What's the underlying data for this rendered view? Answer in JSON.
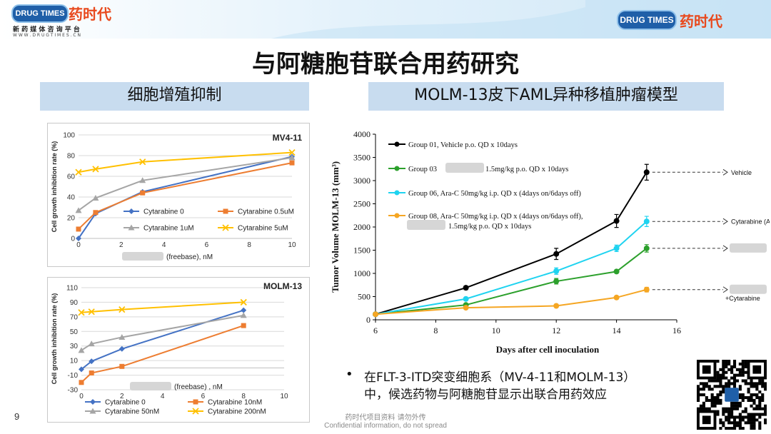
{
  "header": {
    "logo_left_badge": "DRUG TIMES",
    "logo_left_cn": "药时代",
    "logo_left_tagline": "新 药 媒 体 咨 询 平 台",
    "logo_left_url": "W W W . D R U G T I M E S . C N",
    "logo_right_badge": "DRUG TIMES",
    "logo_right_cn": "药时代"
  },
  "title": "与阿糖胞苷联合用药研究",
  "left_section_label": "细胞增殖抑制",
  "right_section_label": "MOLM-13皮下AML异种移植肿瘤模型",
  "bullet": {
    "symbol": "•",
    "line1": "在FLT-3-ITD突变细胞系（MV-4-11和MOLM-13）",
    "line2": "中，候选药物与阿糖胞苷显示出联合用药效应"
  },
  "footer": {
    "page_number": "9",
    "note_cn": "药时代项目资料 请勿外传",
    "note_en": "Confidential information, do not spread"
  },
  "colors": {
    "header_bg": "#dceefa",
    "label_bg": "#c8dcef",
    "blue": "#4472c4",
    "orange": "#ed7d31",
    "gray": "#a5a5a5",
    "yellow": "#ffc000",
    "black": "#000000",
    "green": "#2ca02c",
    "cyan": "#1fd3f0",
    "amber": "#f5a623"
  },
  "chart_data": [
    {
      "type": "line",
      "title": "MV4-11",
      "ylabel": "Cell growth inhibition rate (%)",
      "xlabel": "(freebase), nM",
      "xlim": [
        0,
        10
      ],
      "ylim": [
        0,
        100
      ],
      "xticks": [
        "0",
        "2",
        "4",
        "6",
        "8",
        "10"
      ],
      "yticks": [
        "0",
        "20",
        "40",
        "60",
        "80",
        "100"
      ],
      "legend_position": "lower-center",
      "series": [
        {
          "name": "Cytarabine 0",
          "color": "#4472c4",
          "marker": "diamond",
          "x": [
            0,
            0.8,
            3,
            10
          ],
          "y": [
            0,
            24,
            45,
            79
          ]
        },
        {
          "name": "Cytarabine 0.5uM",
          "color": "#ed7d31",
          "marker": "square",
          "x": [
            0,
            0.8,
            3,
            10
          ],
          "y": [
            9,
            25,
            44,
            73
          ]
        },
        {
          "name": "Cytarabine 1uM",
          "color": "#a5a5a5",
          "marker": "triangle",
          "x": [
            0,
            0.8,
            3,
            10
          ],
          "y": [
            27,
            39,
            56,
            78
          ]
        },
        {
          "name": "Cytarabine 5uM",
          "color": "#ffc000",
          "marker": "x",
          "x": [
            0,
            0.8,
            3,
            10
          ],
          "y": [
            64,
            67,
            74,
            83
          ]
        }
      ]
    },
    {
      "type": "line",
      "title": "MOLM-13",
      "ylabel": "Cell growth inhibition rate (%)",
      "xlabel": "(freebase) , nM",
      "xlim": [
        0,
        10
      ],
      "ylim": [
        -30,
        110
      ],
      "xticks": [
        "0",
        "2",
        "4",
        "6",
        "8",
        "10"
      ],
      "yticks": [
        "-30",
        "-10",
        "10",
        "30",
        "50",
        "70",
        "90",
        "110"
      ],
      "legend_position": "bottom",
      "series": [
        {
          "name": "Cytarabine 0",
          "color": "#4472c4",
          "marker": "diamond",
          "x": [
            0,
            0.5,
            2,
            8
          ],
          "y": [
            -2,
            9,
            26,
            79
          ]
        },
        {
          "name": "Cytarabine 10nM",
          "color": "#ed7d31",
          "marker": "square",
          "x": [
            0,
            0.5,
            2,
            8
          ],
          "y": [
            -20,
            -7,
            2,
            58
          ]
        },
        {
          "name": "Cytarabine 50nM",
          "color": "#a5a5a5",
          "marker": "triangle",
          "x": [
            0,
            0.5,
            2,
            8
          ],
          "y": [
            24,
            33,
            42,
            72
          ]
        },
        {
          "name": "Cytarabine 200nM",
          "color": "#ffc000",
          "marker": "x",
          "x": [
            0,
            0.5,
            2,
            8
          ],
          "y": [
            76,
            77,
            80,
            90
          ]
        }
      ]
    },
    {
      "type": "line",
      "ylabel": "Tumor Volume MOLM-13 (mm³)",
      "xlabel": "Days after cell inoculation",
      "xlim": [
        6,
        16
      ],
      "ylim": [
        0,
        4000
      ],
      "xticks": [
        "6",
        "8",
        "10",
        "12",
        "14",
        "16"
      ],
      "yticks": [
        "0",
        "500",
        "1000",
        "1500",
        "2000",
        "2500",
        "3000",
        "3500",
        "4000"
      ],
      "legend_position": "top-left",
      "series": [
        {
          "name": "Group 01, Vehicle p.o. QD x 10days",
          "end_label": "Vehicle",
          "color": "#000000",
          "x": [
            6,
            9,
            12,
            14,
            15
          ],
          "y": [
            120,
            690,
            1420,
            2130,
            3180
          ],
          "err": [
            0,
            40,
            120,
            140,
            170
          ]
        },
        {
          "name": "Group 03 1.5mg/kg p.o. QD x 10days",
          "end_label": "",
          "color": "#2ca02c",
          "x": [
            6,
            9,
            12,
            14,
            15
          ],
          "y": [
            120,
            320,
            830,
            1040,
            1540
          ],
          "err": [
            0,
            20,
            60,
            30,
            80
          ]
        },
        {
          "name": "Group 06, Ara-C 50mg/kg i.p. QD x (4days on/6days off)",
          "end_label": "Cytarabine  (Ara-c)",
          "color": "#1fd3f0",
          "x": [
            6,
            9,
            12,
            14,
            15
          ],
          "y": [
            120,
            450,
            1050,
            1540,
            2120
          ],
          "err": [
            0,
            30,
            70,
            70,
            110
          ]
        },
        {
          "name": "Group 08, Ara-C 50mg/kg i.p. QD x (4days on/6days off), 1.5mg/kg p.o. QD x 10days",
          "end_label": "+Cytarabine",
          "color": "#f5a623",
          "x": [
            6,
            9,
            12,
            14,
            15
          ],
          "y": [
            120,
            260,
            300,
            480,
            650
          ],
          "err": [
            0,
            20,
            20,
            30,
            50
          ]
        }
      ]
    }
  ]
}
